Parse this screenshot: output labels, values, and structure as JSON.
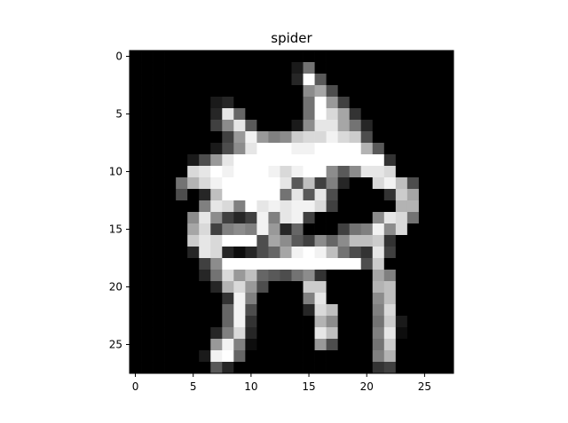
{
  "chart_data": {
    "type": "heatmap",
    "title": "spider",
    "xlabel": "",
    "ylabel": "",
    "colormap": "gray",
    "value_range": [
      0,
      1
    ],
    "grid": false,
    "x_ticks": [
      0,
      5,
      10,
      15,
      20,
      25
    ],
    "y_ticks": [
      0,
      5,
      10,
      15,
      20,
      25
    ],
    "xlim": [
      -0.5,
      27.5
    ],
    "ylim": [
      27.5,
      -0.5
    ],
    "rows": 28,
    "cols": 28,
    "pixels": [
      [
        0,
        0,
        0,
        0,
        0,
        0,
        0,
        0,
        0,
        0,
        0,
        0,
        0,
        0,
        0,
        0,
        0,
        0,
        0,
        0,
        0,
        0,
        0,
        0,
        0,
        0,
        0,
        0
      ],
      [
        0,
        0,
        0,
        0,
        0,
        0,
        0,
        0,
        0,
        0,
        0,
        0,
        0,
        0,
        0.1,
        0.45,
        0,
        0,
        0,
        0,
        0,
        0,
        0,
        0,
        0,
        0,
        0,
        0
      ],
      [
        0,
        0,
        0,
        0,
        0,
        0,
        0,
        0,
        0,
        0,
        0,
        0,
        0,
        0,
        0.15,
        1,
        0.35,
        0,
        0,
        0,
        0,
        0,
        0,
        0,
        0,
        0,
        0,
        0
      ],
      [
        0,
        0,
        0,
        0,
        0,
        0,
        0,
        0,
        0,
        0,
        0,
        0,
        0,
        0,
        0,
        0.55,
        0.65,
        0.3,
        0,
        0,
        0,
        0,
        0,
        0,
        0,
        0,
        0,
        0
      ],
      [
        0,
        0,
        0,
        0,
        0,
        0,
        0,
        0.1,
        0.15,
        0,
        0,
        0,
        0,
        0,
        0,
        0.45,
        1,
        0.6,
        0.25,
        0,
        0,
        0,
        0,
        0,
        0,
        0,
        0,
        0
      ],
      [
        0,
        0,
        0,
        0,
        0,
        0,
        0,
        0.15,
        0.9,
        0.4,
        0,
        0,
        0,
        0,
        0,
        0.45,
        1,
        0.85,
        0.65,
        0.2,
        0,
        0,
        0,
        0,
        0,
        0,
        0,
        0
      ],
      [
        0,
        0,
        0,
        0,
        0,
        0,
        0,
        0.25,
        0.55,
        0.9,
        0.35,
        0,
        0,
        0,
        0.1,
        0.55,
        0.9,
        0.9,
        0.65,
        0.45,
        0.15,
        0,
        0,
        0,
        0,
        0,
        0,
        0
      ],
      [
        0,
        0,
        0,
        0,
        0,
        0,
        0,
        0,
        0.25,
        0.6,
        0.95,
        0.6,
        0.5,
        0.55,
        0.8,
        0.85,
        0.85,
        0.95,
        0.85,
        0.8,
        0.3,
        0,
        0,
        0,
        0,
        0,
        0,
        0
      ],
      [
        0,
        0,
        0,
        0,
        0,
        0,
        0,
        0.1,
        0.3,
        0.55,
        0.9,
        1,
        1,
        1,
        0.95,
        0.95,
        1,
        1,
        1,
        1,
        0.7,
        0.35,
        0,
        0,
        0,
        0,
        0,
        0
      ],
      [
        0,
        0,
        0,
        0,
        0,
        0.1,
        0.3,
        0.6,
        0.9,
        1,
        1,
        1,
        1,
        1,
        1,
        1,
        1,
        1,
        1,
        1,
        1,
        1,
        0.2,
        0,
        0,
        0,
        0,
        0
      ],
      [
        0,
        0,
        0,
        0,
        0,
        0.85,
        0.9,
        1,
        0.95,
        1,
        1,
        1,
        0.95,
        0.85,
        0.95,
        1,
        1,
        0.55,
        0.35,
        0.55,
        0.9,
        0.9,
        0.85,
        0,
        0,
        0,
        0,
        0
      ],
      [
        0,
        0,
        0,
        0,
        0.45,
        0.7,
        0.85,
        0.95,
        1,
        1,
        1,
        1,
        1,
        0.9,
        0.35,
        0.75,
        0.25,
        0.5,
        0.15,
        0,
        0,
        0.85,
        0.95,
        0.75,
        0.3,
        0,
        0,
        0
      ],
      [
        0,
        0,
        0,
        0,
        0.3,
        0,
        0.15,
        0.75,
        1,
        1,
        1,
        1,
        1,
        0.45,
        0.9,
        0.35,
        0.9,
        0.3,
        0,
        0,
        0,
        0,
        0.2,
        0.8,
        0.65,
        0,
        0,
        0
      ],
      [
        0,
        0,
        0,
        0,
        0,
        0,
        0.5,
        0.9,
        0.85,
        0.5,
        1,
        0.9,
        0.95,
        0.9,
        0.95,
        0.95,
        0.85,
        0.25,
        0,
        0,
        0,
        0,
        0,
        0.7,
        0.7,
        0,
        0,
        0
      ],
      [
        0,
        0,
        0,
        0,
        0,
        0.55,
        0.9,
        0.55,
        0.25,
        0.15,
        0.25,
        0.95,
        0.5,
        0.9,
        0.95,
        0.25,
        0,
        0,
        0,
        0,
        0,
        0.55,
        0.9,
        0.85,
        0.45,
        0,
        0,
        0
      ],
      [
        0,
        0,
        0,
        0,
        0,
        0.65,
        0.85,
        0.25,
        0.5,
        0.55,
        0.5,
        0.95,
        0.6,
        0.15,
        0.4,
        0,
        0,
        0,
        0.25,
        0.45,
        0.5,
        0.95,
        0.55,
        0.85,
        0,
        0,
        0,
        0
      ],
      [
        0,
        0,
        0,
        0,
        0,
        0.8,
        0.9,
        0.85,
        1,
        1,
        1,
        0.3,
        0.65,
        0.55,
        0.35,
        0.25,
        0.55,
        0.4,
        0.55,
        0.75,
        0.75,
        0.8,
        0.2,
        0,
        0,
        0,
        0,
        0
      ],
      [
        0,
        0,
        0,
        0,
        0,
        0.15,
        0.9,
        0.85,
        0.15,
        0.05,
        0.15,
        0.3,
        0.4,
        0.65,
        0.95,
        1,
        0.95,
        0.75,
        0.45,
        0.3,
        0.2,
        0.9,
        0.25,
        0,
        0,
        0,
        0,
        0
      ],
      [
        0,
        0,
        0,
        0,
        0,
        0,
        0.25,
        0.55,
        1,
        1,
        1,
        1,
        1,
        1,
        1,
        1,
        1,
        1,
        1,
        1,
        0.3,
        0.8,
        0,
        0,
        0,
        0,
        0,
        0
      ],
      [
        0,
        0,
        0,
        0,
        0,
        0,
        0.15,
        0.45,
        0.85,
        0.6,
        0.75,
        0.4,
        0.35,
        0.3,
        0.45,
        0.55,
        0.2,
        0,
        0,
        0,
        0,
        0.65,
        0.5,
        0,
        0,
        0,
        0,
        0
      ],
      [
        0,
        0,
        0,
        0,
        0,
        0,
        0,
        0.15,
        0.7,
        0.85,
        0.6,
        0.3,
        0,
        0,
        0,
        0.8,
        0.8,
        0,
        0,
        0,
        0,
        0.7,
        0.75,
        0,
        0,
        0,
        0,
        0
      ],
      [
        0,
        0,
        0,
        0,
        0,
        0,
        0,
        0,
        0.2,
        0.95,
        0.5,
        0,
        0,
        0,
        0,
        0.5,
        0.9,
        0,
        0,
        0,
        0,
        0.55,
        0.75,
        0,
        0,
        0,
        0,
        0
      ],
      [
        0,
        0,
        0,
        0,
        0,
        0,
        0,
        0,
        0.4,
        0.95,
        0.3,
        0,
        0,
        0,
        0,
        0.15,
        0.85,
        0.75,
        0,
        0,
        0,
        0.5,
        0.85,
        0,
        0,
        0,
        0,
        0
      ],
      [
        0,
        0,
        0,
        0,
        0,
        0,
        0,
        0,
        0.4,
        0.95,
        0.2,
        0,
        0,
        0,
        0,
        0,
        0.7,
        0.55,
        0,
        0,
        0,
        0.45,
        0.8,
        0.1,
        0,
        0,
        0,
        0
      ],
      [
        0,
        0,
        0,
        0,
        0,
        0,
        0,
        0.15,
        0.5,
        0.85,
        0.15,
        0,
        0,
        0,
        0,
        0,
        0.9,
        0.75,
        0,
        0,
        0,
        0.5,
        0.9,
        0.05,
        0,
        0,
        0,
        0
      ],
      [
        0,
        0,
        0,
        0,
        0,
        0,
        0,
        0.6,
        0.95,
        0.5,
        0.05,
        0,
        0,
        0,
        0,
        0,
        0.6,
        0.3,
        0,
        0,
        0,
        0.45,
        0.8,
        0,
        0,
        0,
        0,
        0
      ],
      [
        0,
        0,
        0,
        0,
        0,
        0,
        0.1,
        0.95,
        1,
        0.4,
        0,
        0,
        0,
        0,
        0,
        0,
        0,
        0,
        0,
        0,
        0,
        0.5,
        0.7,
        0,
        0,
        0,
        0,
        0
      ],
      [
        0,
        0,
        0,
        0,
        0,
        0,
        0,
        0.35,
        0.15,
        0,
        0,
        0,
        0,
        0,
        0,
        0,
        0,
        0,
        0,
        0,
        0,
        0.2,
        0.25,
        0,
        0,
        0,
        0,
        0
      ]
    ]
  }
}
